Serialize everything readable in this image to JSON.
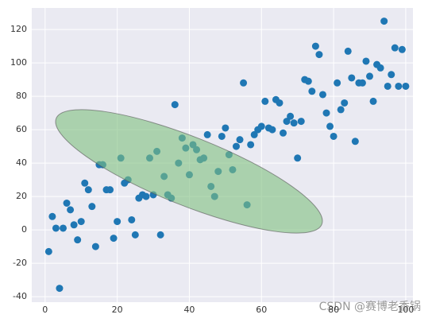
{
  "chart_data": {
    "type": "scatter",
    "color": "#1f77b4",
    "grid": true,
    "x": [
      1,
      2,
      3,
      4,
      5,
      6,
      7,
      8,
      9,
      10,
      11,
      12,
      13,
      14,
      15,
      16,
      17,
      18,
      19,
      20,
      21,
      22,
      23,
      24,
      25,
      26,
      27,
      28,
      29,
      30,
      31,
      32,
      33,
      34,
      35,
      36,
      37,
      38,
      39,
      40,
      41,
      42,
      43,
      44,
      45,
      46,
      47,
      48,
      49,
      50,
      51,
      52,
      53,
      54,
      55,
      56,
      57,
      58,
      59,
      60,
      61,
      62,
      63,
      64,
      65,
      66,
      67,
      68,
      69,
      70,
      71,
      72,
      73,
      74,
      75,
      76,
      77,
      78,
      79,
      80,
      81,
      82,
      83,
      84,
      85,
      86,
      87,
      88,
      89,
      90,
      91,
      92,
      93,
      94,
      95,
      96,
      97,
      98,
      99,
      100
    ],
    "y": [
      -13,
      8,
      1,
      -35,
      1,
      16,
      12,
      3,
      -6,
      5,
      28,
      24,
      14,
      -10,
      39,
      39,
      24,
      24,
      -5,
      5,
      43,
      28,
      30,
      6,
      -3,
      19,
      21,
      20,
      43,
      21,
      47,
      -3,
      32,
      21,
      19,
      75,
      40,
      55,
      49,
      33,
      51,
      48,
      42,
      43,
      57,
      26,
      20,
      35,
      56,
      61,
      45,
      36,
      50,
      54,
      88,
      15,
      51,
      57,
      60,
      62,
      77,
      61,
      60,
      78,
      76,
      58,
      65,
      68,
      64,
      43,
      65,
      90,
      89,
      83,
      110,
      105,
      81,
      70,
      62,
      56,
      88,
      72,
      76,
      107,
      91,
      53,
      88,
      88,
      101,
      92,
      77,
      99,
      97,
      125,
      86,
      93,
      109,
      86,
      108,
      86
    ],
    "xlim": [
      -3.7,
      102
    ],
    "ylim": [
      -43.3,
      132.9
    ],
    "xticks": [
      0,
      20,
      40,
      60,
      80,
      100
    ],
    "yticks": [
      -40,
      -20,
      0,
      20,
      40,
      60,
      80,
      100,
      120
    ]
  },
  "watermark": "CSDN @赛博老香锅"
}
